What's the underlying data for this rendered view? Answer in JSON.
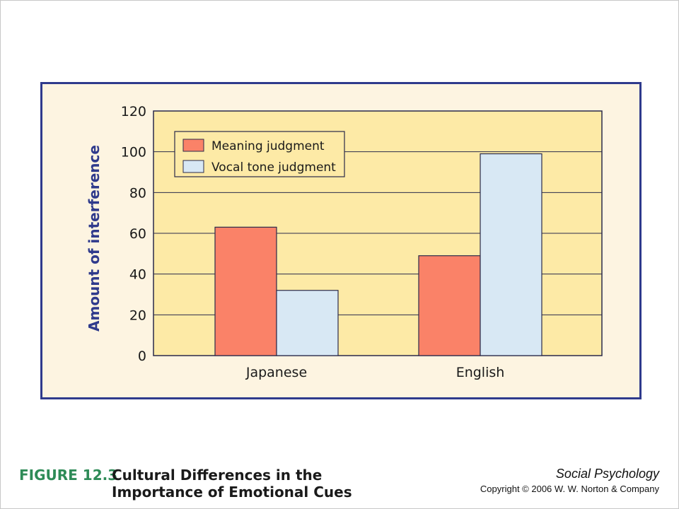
{
  "figure": {
    "number": "FIGURE 12.3",
    "title": "Cultural Differences in the Importance of Emotional Cues"
  },
  "footer": {
    "book_title": "Social Psychology",
    "copyright": "Copyright © 2006 W. W. Norton & Company"
  },
  "colors": {
    "frame_border": "#2f3a8c",
    "plot_background": "#fdeaa6",
    "meaning_bar": "#fa8268",
    "vocal_bar": "#d8e8f4",
    "figure_number": "#2e8b57"
  },
  "chart_data": {
    "type": "bar",
    "title": "",
    "xlabel": "",
    "ylabel": "Amount of interference",
    "categories": [
      "Japanese",
      "English"
    ],
    "series": [
      {
        "name": "Meaning judgment",
        "values": [
          63,
          49
        ],
        "color": "#fa8268"
      },
      {
        "name": "Vocal tone judgment",
        "values": [
          32,
          99
        ],
        "color": "#d8e8f4"
      }
    ],
    "ylim": [
      0,
      120
    ],
    "yticks": [
      "0",
      "20",
      "40",
      "60",
      "80",
      "100",
      "120"
    ],
    "grid": true,
    "legend_position": "top-left"
  }
}
